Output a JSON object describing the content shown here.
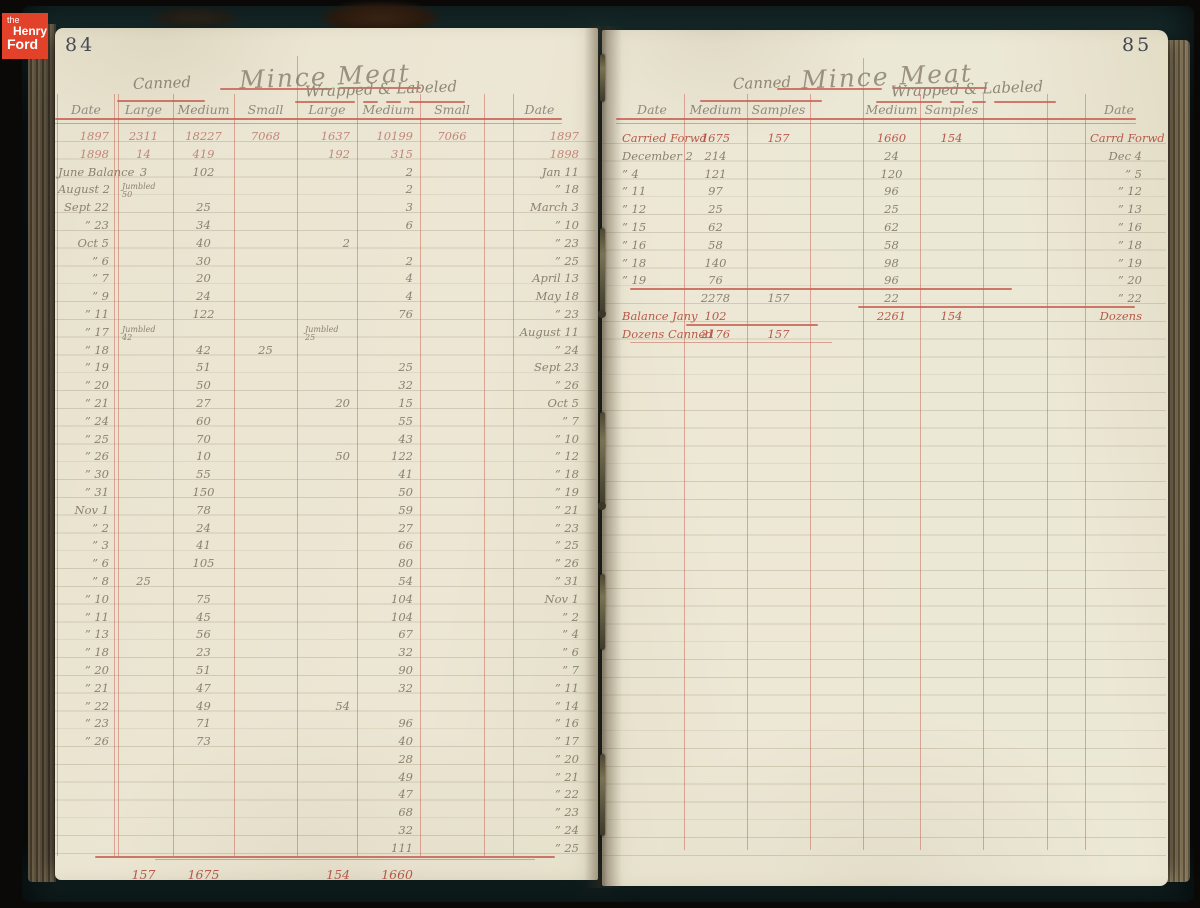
{
  "logo": {
    "line1": "the",
    "line2": "Henry",
    "line3": "Ford"
  },
  "colors": {
    "paper": "#eae5d1",
    "paper2": "#ece8d5",
    "pencil": "#8b8170",
    "red_ink": "#b9584a",
    "faded_red": "#c3857b",
    "rule_red": "#c65a4e",
    "logo_orange": "#e2422a"
  },
  "left_page": {
    "page_number": "84",
    "title": "Mince Meat",
    "groups": {
      "canned": "Canned",
      "wrapped": "Wrapped & Labeled"
    },
    "columns": [
      "Date",
      "Large",
      "Medium",
      "Small",
      "Large",
      "Medium",
      "Small",
      "Date"
    ],
    "rows": [
      {
        "c": [
          "1897",
          "2311",
          "18227",
          "7068",
          "1637",
          "10199",
          "7066",
          "1897"
        ],
        "s": "faded"
      },
      {
        "c": [
          "1898",
          "14",
          "419",
          "",
          "192",
          "315",
          "",
          "1898"
        ],
        "s": "faded"
      },
      {
        "c": [
          "June Balance",
          "3",
          "102",
          "",
          "",
          "2",
          "",
          "Jan 11"
        ]
      },
      {
        "c": [
          "August 2",
          "Jumbled\n50",
          "",
          "",
          "",
          "2",
          "",
          "” 18"
        ]
      },
      {
        "c": [
          "Sept 22",
          "",
          "25",
          "",
          "",
          "3",
          "",
          "March 3"
        ]
      },
      {
        "c": [
          "” 23",
          "",
          "34",
          "",
          "",
          "6",
          "",
          "” 10"
        ]
      },
      {
        "c": [
          "Oct 5",
          "",
          "40",
          "",
          "2",
          "",
          "",
          "” 23"
        ]
      },
      {
        "c": [
          "” 6",
          "",
          "30",
          "",
          "",
          "2",
          "",
          "” 25"
        ]
      },
      {
        "c": [
          "” 7",
          "",
          "20",
          "",
          "",
          "4",
          "",
          "April 13"
        ]
      },
      {
        "c": [
          "” 9",
          "",
          "24",
          "",
          "",
          "4",
          "",
          "May 18"
        ]
      },
      {
        "c": [
          "” 11",
          "",
          "122",
          "",
          "",
          "76",
          "",
          "” 23"
        ]
      },
      {
        "c": [
          "” 17",
          "Jumbled\n42",
          "",
          "",
          "Jumbled\n25",
          "",
          "",
          "August 11"
        ]
      },
      {
        "c": [
          "” 18",
          "",
          "42",
          "25",
          "",
          "",
          "",
          "” 24"
        ]
      },
      {
        "c": [
          "” 19",
          "",
          "51",
          "",
          "",
          "25",
          "",
          "Sept 23"
        ]
      },
      {
        "c": [
          "” 20",
          "",
          "50",
          "",
          "",
          "32",
          "",
          "” 26"
        ]
      },
      {
        "c": [
          "” 21",
          "",
          "27",
          "",
          "20",
          "15",
          "",
          "Oct 5"
        ]
      },
      {
        "c": [
          "” 24",
          "",
          "60",
          "",
          "",
          "55",
          "",
          "” 7"
        ]
      },
      {
        "c": [
          "” 25",
          "",
          "70",
          "",
          "",
          "43",
          "",
          "” 10"
        ]
      },
      {
        "c": [
          "” 26",
          "",
          "10",
          "",
          "50",
          "122",
          "",
          "” 12"
        ]
      },
      {
        "c": [
          "” 30",
          "",
          "55",
          "",
          "",
          "41",
          "",
          "” 18"
        ]
      },
      {
        "c": [
          "” 31",
          "",
          "150",
          "",
          "",
          "50",
          "",
          "” 19"
        ]
      },
      {
        "c": [
          "Nov 1",
          "",
          "78",
          "",
          "",
          "59",
          "",
          "” 21"
        ]
      },
      {
        "c": [
          "” 2",
          "",
          "24",
          "",
          "",
          "27",
          "",
          "” 23"
        ]
      },
      {
        "c": [
          "” 3",
          "",
          "41",
          "",
          "",
          "66",
          "",
          "” 25"
        ]
      },
      {
        "c": [
          "” 6",
          "",
          "105",
          "",
          "",
          "80",
          "",
          "” 26"
        ]
      },
      {
        "c": [
          "” 8",
          "25",
          "",
          "",
          "",
          "54",
          "",
          "” 31"
        ]
      },
      {
        "c": [
          "” 10",
          "",
          "75",
          "",
          "",
          "104",
          "",
          "Nov 1"
        ]
      },
      {
        "c": [
          "” 11",
          "",
          "45",
          "",
          "",
          "104",
          "",
          "” 2"
        ]
      },
      {
        "c": [
          "” 13",
          "",
          "56",
          "",
          "",
          "67",
          "",
          "” 4"
        ]
      },
      {
        "c": [
          "” 18",
          "",
          "23",
          "",
          "",
          "32",
          "",
          "” 6"
        ]
      },
      {
        "c": [
          "” 20",
          "",
          "51",
          "",
          "",
          "90",
          "",
          "” 7"
        ]
      },
      {
        "c": [
          "” 21",
          "",
          "47",
          "",
          "",
          "32",
          "",
          "” 11"
        ]
      },
      {
        "c": [
          "” 22",
          "",
          "49",
          "",
          "54",
          "",
          "",
          "” 14"
        ]
      },
      {
        "c": [
          "” 23",
          "",
          "71",
          "",
          "",
          "96",
          "",
          "” 16"
        ]
      },
      {
        "c": [
          "” 26",
          "",
          "73",
          "",
          "",
          "40",
          "",
          "” 17"
        ]
      },
      {
        "c": [
          "",
          "",
          "",
          "",
          "",
          "28",
          "",
          "” 20"
        ]
      },
      {
        "c": [
          "",
          "",
          "",
          "",
          "",
          "49",
          "",
          "” 21"
        ]
      },
      {
        "c": [
          "",
          "",
          "",
          "",
          "",
          "47",
          "",
          "” 22"
        ]
      },
      {
        "c": [
          "",
          "",
          "",
          "",
          "",
          "68",
          "",
          "” 23"
        ]
      },
      {
        "c": [
          "",
          "",
          "",
          "",
          "",
          "32",
          "",
          "” 24"
        ]
      },
      {
        "c": [
          "",
          "",
          "",
          "",
          "",
          "111",
          "",
          "” 25"
        ]
      }
    ],
    "totals": {
      "c": [
        "",
        "157",
        "1675",
        "",
        "154",
        "1660",
        "",
        ""
      ],
      "s": "red"
    }
  },
  "right_page": {
    "page_number": "85",
    "title": "Mince Meat",
    "groups": {
      "canned": "Canned",
      "wrapped": "Wrapped & Labeled"
    },
    "columns": [
      "Date",
      "Medium",
      "Samples",
      "Medium",
      "Samples",
      "Date"
    ],
    "rows": [
      {
        "c": [
          "Carried Forwd",
          "1675",
          "157",
          "1660",
          "154",
          "Carrd Forwd"
        ],
        "s": "red"
      },
      {
        "c": [
          "December 2",
          "214",
          "",
          "24",
          "",
          "Dec 4"
        ]
      },
      {
        "c": [
          "” 4",
          "121",
          "",
          "120",
          "",
          "” 5"
        ]
      },
      {
        "c": [
          "” 11",
          "97",
          "",
          "96",
          "",
          "” 12"
        ]
      },
      {
        "c": [
          "” 12",
          "25",
          "",
          "25",
          "",
          "” 13"
        ]
      },
      {
        "c": [
          "” 15",
          "62",
          "",
          "62",
          "",
          "” 16"
        ]
      },
      {
        "c": [
          "” 16",
          "58",
          "",
          "58",
          "",
          "” 18"
        ]
      },
      {
        "c": [
          "” 18",
          "140",
          "",
          "98",
          "",
          "” 19"
        ]
      },
      {
        "c": [
          "” 19",
          "76",
          "",
          "96",
          "",
          "” 20"
        ]
      },
      {
        "c": [
          "",
          "2278",
          "157",
          "22",
          "",
          "” 22"
        ]
      },
      {
        "c": [
          "Balance Jany",
          "102",
          "",
          "2261",
          "154",
          "Dozens"
        ],
        "s": "red"
      },
      {
        "c": [
          "Dozens Canned",
          "2176",
          "157",
          "",
          "",
          ""
        ],
        "s": "red"
      }
    ]
  }
}
